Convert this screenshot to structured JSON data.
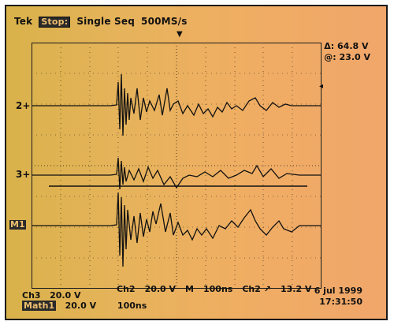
{
  "header": {
    "brand": "Tek",
    "status": "Stop:",
    "mode": "Single Seq",
    "rate": "500MS/s"
  },
  "readout": {
    "delta": "Δ: 64.8 V",
    "at": "@: 23.0 V"
  },
  "markers": {
    "ch2": "2+",
    "ch3": "3+",
    "math": "M1"
  },
  "bottom": {
    "ch2_label": "Ch2",
    "ch2_value": "20.0 V",
    "time_label": "M",
    "time_value": "100ns",
    "trig_label": "Ch2 ↗",
    "trig_value": "13.2 V"
  },
  "left_info": {
    "ch3_label": "Ch3",
    "ch3_value": "20.0 V",
    "math_label": "Math1",
    "math_value": "20.0 V",
    "math_time": "100ns"
  },
  "datetime": {
    "date": "6 jul 1999",
    "time": "17:31:50"
  },
  "colors": {
    "trace": "#111111",
    "panel_bg": "#e6b35b"
  }
}
